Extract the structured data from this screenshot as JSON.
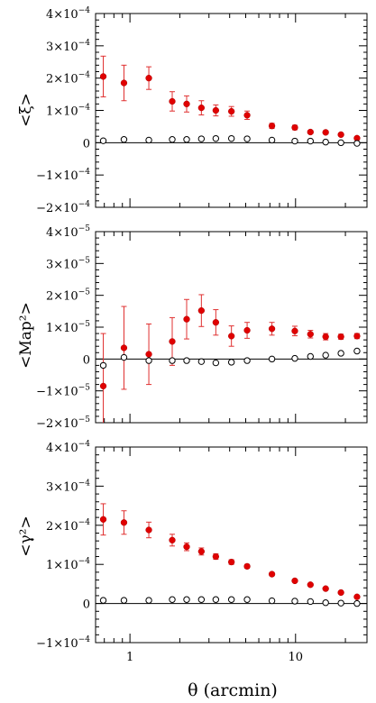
{
  "chart_data": [
    {
      "type": "scatter",
      "ylabel": "<ξ>",
      "xscale": "log",
      "xlim": [
        0.62,
        27
      ],
      "ylim": [
        -0.0002,
        0.0004
      ],
      "yticks": [
        {
          "v": 0.0004,
          "m": "4",
          "e": "-4"
        },
        {
          "v": 0.0003,
          "m": "3",
          "e": "-4"
        },
        {
          "v": 0.0002,
          "m": "2",
          "e": "-4"
        },
        {
          "v": 0.0001,
          "m": "1",
          "e": "-4"
        },
        {
          "v": 0,
          "m": "0",
          "e": ""
        },
        {
          "v": -0.0001,
          "m": "−1",
          "e": "-4"
        },
        {
          "v": -0.0002,
          "m": "−2",
          "e": "-4"
        }
      ],
      "zero_line": true,
      "series": [
        {
          "kind": "measured",
          "marker": "filled",
          "color": "#e00000",
          "x": [
            0.69,
            0.92,
            1.3,
            1.8,
            2.2,
            2.7,
            3.3,
            4.1,
            5.1,
            7.2,
            9.9,
            12.3,
            15.2,
            18.8,
            23.5
          ],
          "y": [
            0.000205,
            0.000185,
            0.0002,
            0.000128,
            0.00012,
            0.000108,
            0.0001,
            9.7e-05,
            8.5e-05,
            5.2e-05,
            4.7e-05,
            3.3e-05,
            3.2e-05,
            2.5e-05,
            1.4e-05
          ],
          "err": [
            6.3e-05,
            5.5e-05,
            3.5e-05,
            3e-05,
            2.5e-05,
            2.2e-05,
            1.7e-05,
            1.5e-05,
            1.3e-05,
            8e-06,
            7e-06,
            5e-06,
            5e-06,
            4e-06,
            4e-06
          ]
        },
        {
          "kind": "b-mode",
          "marker": "open",
          "color": "#000000",
          "x": [
            0.69,
            0.92,
            1.3,
            1.8,
            2.2,
            2.7,
            3.3,
            4.1,
            5.1,
            7.2,
            9.9,
            12.3,
            15.2,
            18.8,
            23.5
          ],
          "y": [
            6e-06,
            1e-05,
            8e-06,
            1e-05,
            1e-05,
            1.2e-05,
            1.3e-05,
            1.3e-05,
            1.2e-05,
            8e-06,
            5e-06,
            5e-06,
            2e-06,
            0.0,
            -2e-06
          ]
        }
      ]
    },
    {
      "type": "scatter",
      "ylabel": "<Map²>",
      "xscale": "log",
      "xlim": [
        0.62,
        27
      ],
      "ylim": [
        -2e-05,
        4e-05
      ],
      "yticks": [
        {
          "v": 4e-05,
          "m": "4",
          "e": "-5"
        },
        {
          "v": 3e-05,
          "m": "3",
          "e": "-5"
        },
        {
          "v": 2e-05,
          "m": "2",
          "e": "-5"
        },
        {
          "v": 1e-05,
          "m": "1",
          "e": "-5"
        },
        {
          "v": 0,
          "m": "0",
          "e": ""
        },
        {
          "v": -1e-05,
          "m": "−1",
          "e": "-5"
        },
        {
          "v": -2e-05,
          "m": "−2",
          "e": "-5"
        }
      ],
      "zero_line": true,
      "series": [
        {
          "kind": "measured",
          "marker": "filled",
          "color": "#e00000",
          "x": [
            0.69,
            0.92,
            1.3,
            1.8,
            2.2,
            2.7,
            3.3,
            4.1,
            5.1,
            7.2,
            9.9,
            12.3,
            15.2,
            18.8,
            23.5
          ],
          "y": [
            -8.5e-06,
            3.5e-06,
            1.5e-06,
            5.5e-06,
            1.25e-05,
            1.52e-05,
            1.15e-05,
            7.2e-06,
            9e-06,
            9.5e-06,
            8.8e-06,
            7.8e-06,
            7e-06,
            7e-06,
            7.2e-06
          ],
          "err": [
            1.65e-05,
            1.3e-05,
            9.5e-06,
            7.5e-06,
            6.2e-06,
            5e-06,
            4e-06,
            3.2e-06,
            2.5e-06,
            2e-06,
            1.5e-06,
            1.2e-06,
            1e-06,
            8e-07,
            8e-07
          ]
        },
        {
          "kind": "b-mode",
          "marker": "open",
          "color": "#000000",
          "x": [
            0.69,
            0.92,
            1.3,
            1.8,
            2.2,
            2.7,
            3.3,
            4.1,
            5.1,
            7.2,
            9.9,
            12.3,
            15.2,
            18.8,
            23.5
          ],
          "y": [
            -2e-06,
            5e-07,
            -5e-07,
            -5e-07,
            -5e-07,
            -8e-07,
            -1.2e-06,
            -1e-06,
            -5e-07,
            0.0,
            2e-07,
            8e-07,
            1.2e-06,
            1.8e-06,
            2.5e-06
          ]
        }
      ]
    },
    {
      "type": "scatter",
      "ylabel": "<γ²>",
      "xlabel": "θ (arcmin)",
      "xscale": "log",
      "xlim": [
        0.62,
        27
      ],
      "ylim": [
        -0.0001,
        0.0004
      ],
      "xticks": [
        {
          "v": 1,
          "label": "1"
        },
        {
          "v": 10,
          "label": "10"
        }
      ],
      "yticks": [
        {
          "v": 0.0004,
          "m": "4",
          "e": "-4"
        },
        {
          "v": 0.0003,
          "m": "3",
          "e": "-4"
        },
        {
          "v": 0.0002,
          "m": "2",
          "e": "-4"
        },
        {
          "v": 0.0001,
          "m": "1",
          "e": "-4"
        },
        {
          "v": 0,
          "m": "0",
          "e": ""
        },
        {
          "v": -0.0001,
          "m": "−1",
          "e": "-4"
        }
      ],
      "zero_line": true,
      "series": [
        {
          "kind": "measured",
          "marker": "filled",
          "color": "#e00000",
          "x": [
            0.69,
            0.92,
            1.3,
            1.8,
            2.2,
            2.7,
            3.3,
            4.1,
            5.1,
            7.2,
            9.9,
            12.3,
            15.2,
            18.8,
            23.5
          ],
          "y": [
            0.000215,
            0.000207,
            0.000188,
            0.000162,
            0.000145,
            0.000133,
            0.00012,
            0.000106,
            9.5e-05,
            7.5e-05,
            5.8e-05,
            4.8e-05,
            3.8e-05,
            2.8e-05,
            1.7e-05
          ],
          "err": [
            4e-05,
            3e-05,
            2e-05,
            1.5e-05,
            1e-05,
            9e-06,
            7e-06,
            6e-06,
            5e-06,
            4e-06,
            3e-06,
            3e-06,
            2e-06,
            2e-06,
            2e-06
          ]
        },
        {
          "kind": "b-mode",
          "marker": "open",
          "color": "#000000",
          "x": [
            0.69,
            0.92,
            1.3,
            1.8,
            2.2,
            2.7,
            3.3,
            4.1,
            5.1,
            7.2,
            9.9,
            12.3,
            15.2,
            18.8,
            23.5
          ],
          "y": [
            8e-06,
            8e-06,
            8e-06,
            1e-05,
            1e-05,
            1e-05,
            1e-05,
            1e-05,
            1e-05,
            7e-06,
            6e-06,
            5e-06,
            2e-06,
            1e-06,
            0.0
          ]
        }
      ]
    }
  ]
}
